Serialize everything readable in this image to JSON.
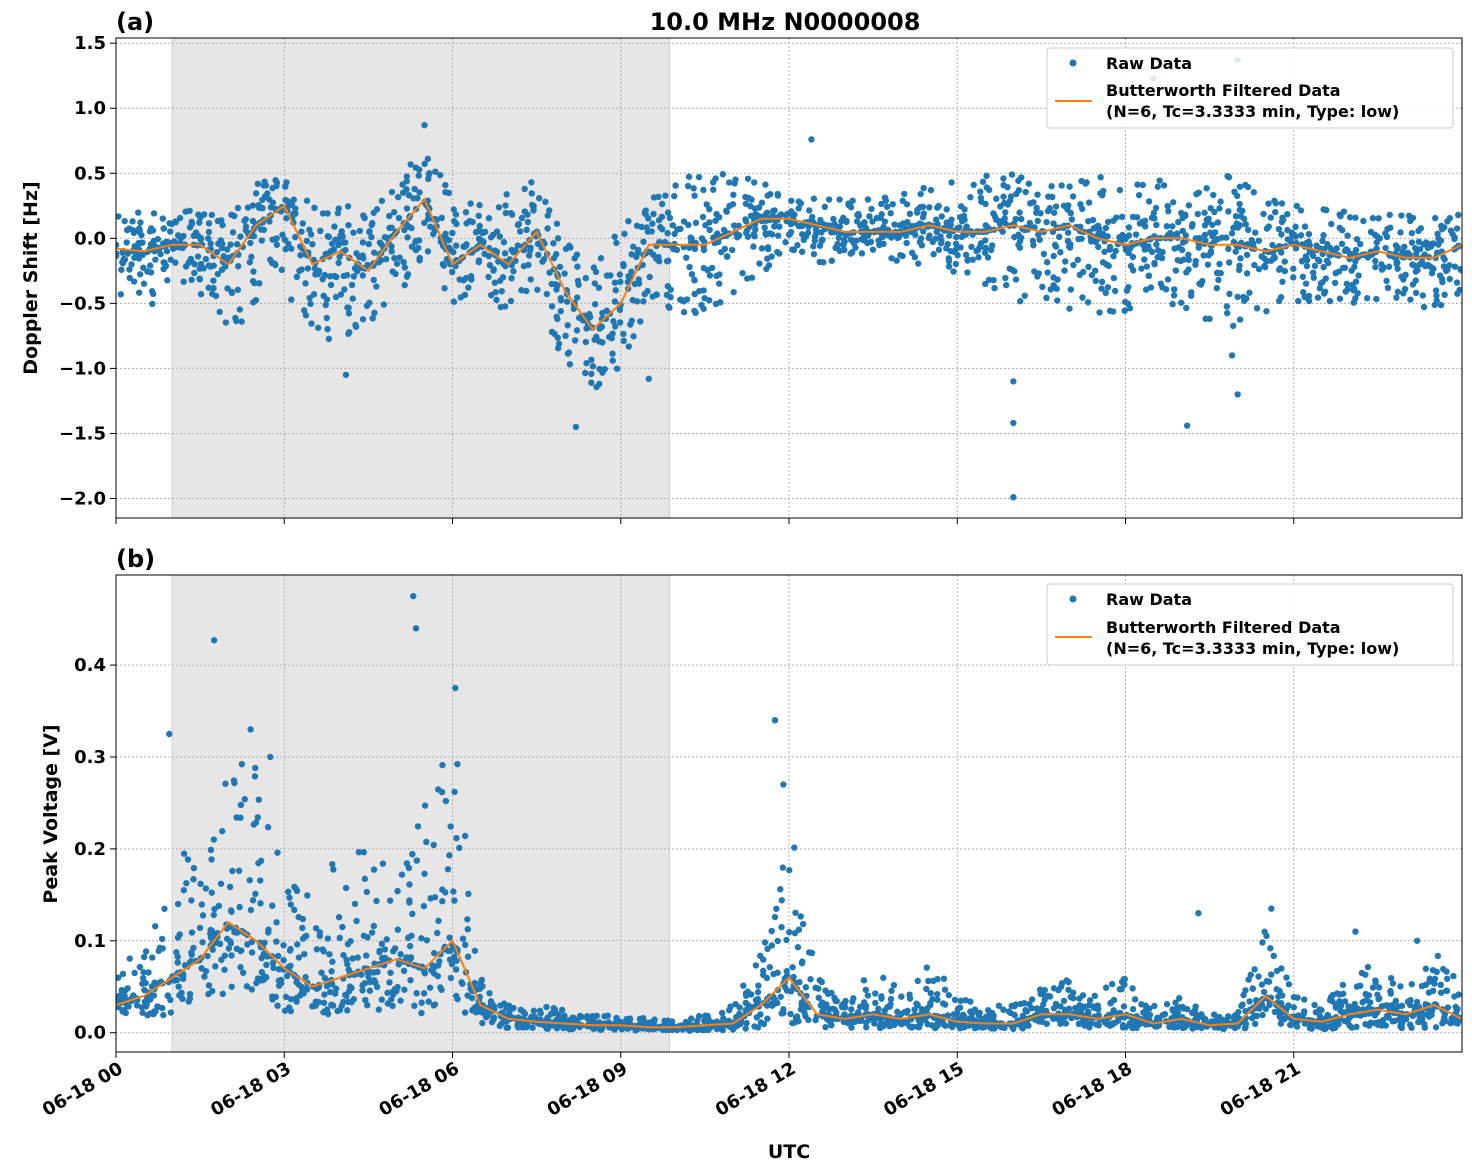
{
  "title": "10.0 MHz N0000008",
  "colors": {
    "raw": "#1f77b4",
    "filtered": "#ff7f0e",
    "shade": "#e6e6e6",
    "grid": "#b0b0b0"
  },
  "chart_data": [
    {
      "type": "scatter",
      "panel_label": "(a)",
      "ylabel": "Doppler Shift [Hz]",
      "xlabel": "",
      "xlim_hours": [
        0,
        24
      ],
      "ylim": [
        -2.15,
        1.54
      ],
      "yticks": [
        1.5,
        1.0,
        0.5,
        0.0,
        -0.5,
        -1.0,
        -1.5,
        -2.0
      ],
      "ytick_labels": [
        "1.5",
        "1.0",
        "0.5",
        "0.0",
        "−0.5",
        "−1.0",
        "−1.5",
        "−2.0"
      ],
      "grid": true,
      "shaded_span_hours": [
        1.0,
        9.87
      ],
      "legend": {
        "placement": "top-right",
        "entries": [
          "Raw Data",
          "Butterworth Filtered Data",
          "(N=6, Tc=3.3333 min, Type: low)"
        ]
      },
      "x_hours": [
        0,
        0.5,
        1,
        1.5,
        2,
        2.5,
        3,
        3.5,
        4,
        4.5,
        5,
        5.5,
        6,
        6.5,
        7,
        7.5,
        8,
        8.5,
        9,
        9.5,
        10,
        10.5,
        11,
        11.5,
        12,
        12.5,
        13,
        13.5,
        14,
        14.5,
        15,
        15.5,
        16,
        16.5,
        17,
        17.5,
        18,
        18.5,
        19,
        19.5,
        20,
        20.5,
        21,
        21.5,
        22,
        22.5,
        23,
        23.5,
        24
      ],
      "series": [
        {
          "name": "Butterworth Filtered Data",
          "kind": "line",
          "values": [
            -0.08,
            -0.1,
            -0.05,
            -0.05,
            -0.2,
            0.1,
            0.25,
            -0.2,
            -0.1,
            -0.25,
            0.05,
            0.3,
            -0.2,
            -0.05,
            -0.2,
            0.05,
            -0.4,
            -0.7,
            -0.5,
            -0.05,
            -0.05,
            -0.05,
            0.05,
            0.15,
            0.15,
            0.1,
            0.05,
            0.05,
            0.05,
            0.1,
            0.05,
            0.05,
            0.1,
            0.05,
            0.1,
            0.0,
            -0.05,
            0.0,
            0.0,
            -0.05,
            -0.05,
            -0.1,
            -0.05,
            -0.1,
            -0.15,
            -0.1,
            -0.15,
            -0.15,
            -0.05
          ]
        },
        {
          "name": "Raw Data",
          "kind": "scatter",
          "lower": [
            -0.5,
            -0.6,
            -0.4,
            -0.45,
            -0.7,
            -0.6,
            -0.4,
            -0.7,
            -0.9,
            -0.7,
            -0.5,
            -0.2,
            -0.5,
            -0.4,
            -0.6,
            -0.4,
            -1.0,
            -1.2,
            -1.0,
            -0.5,
            -0.6,
            -0.6,
            -0.5,
            -0.3,
            -0.1,
            -0.2,
            -0.15,
            -0.15,
            -0.2,
            -0.2,
            -0.3,
            -0.4,
            -0.5,
            -0.5,
            -0.6,
            -0.6,
            -0.6,
            -0.6,
            -0.6,
            -0.7,
            -0.7,
            -0.6,
            -0.5,
            -0.5,
            -0.5,
            -0.5,
            -0.5,
            -0.6,
            -0.4
          ],
          "upper": [
            0.2,
            0.2,
            0.2,
            0.3,
            0.2,
            0.5,
            0.5,
            0.3,
            0.3,
            0.2,
            0.4,
            0.75,
            0.35,
            0.3,
            0.4,
            0.45,
            0.0,
            -0.2,
            0.1,
            0.3,
            0.5,
            0.5,
            0.5,
            0.45,
            0.35,
            0.3,
            0.3,
            0.3,
            0.35,
            0.4,
            0.5,
            0.5,
            0.5,
            0.45,
            0.5,
            0.5,
            0.4,
            0.5,
            0.4,
            0.45,
            0.5,
            0.3,
            0.3,
            0.25,
            0.2,
            0.2,
            0.2,
            0.2,
            0.25
          ],
          "outliers": [
            [
              4.1,
              -1.05
            ],
            [
              5.5,
              0.87
            ],
            [
              8.2,
              -1.45
            ],
            [
              9.5,
              -1.08
            ],
            [
              12.4,
              0.76
            ],
            [
              16.0,
              -1.99
            ],
            [
              16.0,
              -1.42
            ],
            [
              16.0,
              -1.1
            ],
            [
              18.5,
              1.23
            ],
            [
              19.1,
              -1.44
            ],
            [
              20.0,
              1.37
            ],
            [
              20.0,
              -1.2
            ],
            [
              19.9,
              -0.9
            ]
          ]
        }
      ]
    },
    {
      "type": "scatter",
      "panel_label": "(b)",
      "ylabel": "Peak Voltage [V]",
      "xlabel": "UTC",
      "xlim_hours": [
        0,
        24
      ],
      "ylim": [
        -0.021,
        0.498
      ],
      "yticks": [
        0.0,
        0.1,
        0.2,
        0.3,
        0.4
      ],
      "ytick_labels": [
        "0.0",
        "0.1",
        "0.2",
        "0.3",
        "0.4"
      ],
      "xtick_hours": [
        0,
        3,
        6,
        9,
        12,
        15,
        18,
        21
      ],
      "xtick_labels": [
        "06-18 00",
        "06-18 03",
        "06-18 06",
        "06-18 09",
        "06-18 12",
        "06-18 15",
        "06-18 18",
        "06-18 21"
      ],
      "grid": true,
      "shaded_span_hours": [
        1.0,
        9.87
      ],
      "legend": {
        "placement": "top-right",
        "entries": [
          "Raw Data",
          "Butterworth Filtered Data",
          "(N=6, Tc=3.3333 min, Type: low)"
        ]
      },
      "x_hours": [
        0,
        0.5,
        1,
        1.5,
        2,
        2.5,
        3,
        3.5,
        4,
        4.5,
        5,
        5.5,
        6,
        6.5,
        7,
        7.5,
        8,
        8.5,
        9,
        9.5,
        10,
        10.5,
        11,
        11.5,
        12,
        12.5,
        13,
        13.5,
        14,
        14.5,
        15,
        15.5,
        16,
        16.5,
        17,
        17.5,
        18,
        18.5,
        19,
        19.5,
        20,
        20.5,
        21,
        21.5,
        22,
        22.5,
        23,
        23.5,
        24
      ],
      "series": [
        {
          "name": "Butterworth Filtered Data",
          "kind": "line",
          "values": [
            0.03,
            0.04,
            0.06,
            0.08,
            0.12,
            0.1,
            0.07,
            0.05,
            0.06,
            0.07,
            0.08,
            0.07,
            0.1,
            0.03,
            0.015,
            0.012,
            0.01,
            0.008,
            0.008,
            0.006,
            0.006,
            0.008,
            0.01,
            0.03,
            0.06,
            0.02,
            0.015,
            0.02,
            0.015,
            0.02,
            0.012,
            0.01,
            0.01,
            0.02,
            0.02,
            0.015,
            0.02,
            0.01,
            0.015,
            0.008,
            0.01,
            0.04,
            0.015,
            0.012,
            0.02,
            0.025,
            0.02,
            0.03,
            0.015
          ]
        },
        {
          "name": "Raw Data",
          "kind": "scatter",
          "lower": [
            0.01,
            0.015,
            0.02,
            0.03,
            0.04,
            0.04,
            0.02,
            0.02,
            0.02,
            0.02,
            0.03,
            0.02,
            0.03,
            0.01,
            0.005,
            0.005,
            0.003,
            0.003,
            0.003,
            0.002,
            0.002,
            0.002,
            0.003,
            0.005,
            0.01,
            0.005,
            0.005,
            0.005,
            0.005,
            0.005,
            0.004,
            0.004,
            0.004,
            0.005,
            0.005,
            0.004,
            0.004,
            0.004,
            0.004,
            0.003,
            0.003,
            0.005,
            0.005,
            0.004,
            0.005,
            0.005,
            0.005,
            0.005,
            0.005
          ],
          "upper": [
            0.08,
            0.1,
            0.2,
            0.2,
            0.3,
            0.3,
            0.18,
            0.15,
            0.2,
            0.2,
            0.2,
            0.25,
            0.35,
            0.06,
            0.03,
            0.03,
            0.025,
            0.02,
            0.02,
            0.015,
            0.015,
            0.02,
            0.03,
            0.1,
            0.25,
            0.06,
            0.04,
            0.07,
            0.05,
            0.08,
            0.04,
            0.03,
            0.03,
            0.05,
            0.06,
            0.04,
            0.07,
            0.03,
            0.04,
            0.02,
            0.02,
            0.12,
            0.04,
            0.03,
            0.06,
            0.08,
            0.05,
            0.09,
            0.05
          ],
          "outliers": [
            [
              0.95,
              0.325
            ],
            [
              1.75,
              0.427
            ],
            [
              2.4,
              0.33
            ],
            [
              2.75,
              0.3
            ],
            [
              5.3,
              0.475
            ],
            [
              5.35,
              0.44
            ],
            [
              6.05,
              0.375
            ],
            [
              11.75,
              0.34
            ],
            [
              11.9,
              0.27
            ],
            [
              19.3,
              0.13
            ],
            [
              20.6,
              0.135
            ],
            [
              22.1,
              0.11
            ],
            [
              23.2,
              0.1
            ]
          ]
        }
      ]
    }
  ]
}
